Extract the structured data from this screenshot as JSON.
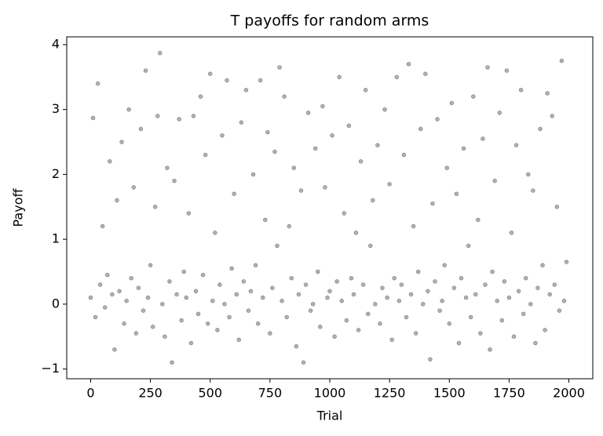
{
  "chart_data": {
    "type": "scatter",
    "title": "T payoffs for random arms",
    "xlabel": "Trial",
    "ylabel": "Payoff",
    "xlim": [
      -100,
      2100
    ],
    "ylim": [
      -1.15,
      4.12
    ],
    "xticks": [
      0,
      250,
      500,
      750,
      1000,
      1250,
      1500,
      1750,
      2000
    ],
    "yticks": [
      {
        "value": -1,
        "label": "−1"
      },
      0,
      1,
      2,
      3,
      4
    ],
    "grid": false,
    "x": [
      0,
      10,
      20,
      30,
      40,
      50,
      60,
      70,
      80,
      90,
      100,
      110,
      120,
      130,
      140,
      150,
      160,
      170,
      180,
      190,
      200,
      210,
      220,
      230,
      240,
      250,
      260,
      270,
      280,
      290,
      300,
      310,
      320,
      330,
      340,
      350,
      360,
      370,
      380,
      390,
      400,
      410,
      420,
      430,
      440,
      450,
      460,
      470,
      480,
      490,
      500,
      510,
      520,
      530,
      540,
      550,
      560,
      570,
      580,
      590,
      600,
      610,
      620,
      630,
      640,
      650,
      660,
      670,
      680,
      690,
      700,
      710,
      720,
      730,
      740,
      750,
      760,
      770,
      780,
      790,
      800,
      810,
      820,
      830,
      840,
      850,
      860,
      870,
      880,
      890,
      900,
      910,
      920,
      930,
      940,
      950,
      960,
      970,
      980,
      990,
      1000,
      1010,
      1020,
      1030,
      1040,
      1050,
      1060,
      1070,
      1080,
      1090,
      1100,
      1110,
      1120,
      1130,
      1140,
      1150,
      1160,
      1170,
      1180,
      1190,
      1200,
      1210,
      1220,
      1230,
      1240,
      1250,
      1260,
      1270,
      1280,
      1290,
      1300,
      1310,
      1320,
      1330,
      1340,
      1350,
      1360,
      1370,
      1380,
      1390,
      1400,
      1410,
      1420,
      1430,
      1440,
      1450,
      1460,
      1470,
      1480,
      1490,
      1500,
      1510,
      1520,
      1530,
      1540,
      1550,
      1560,
      1570,
      1580,
      1590,
      1600,
      1610,
      1620,
      1630,
      1640,
      1650,
      1660,
      1670,
      1680,
      1690,
      1700,
      1710,
      1720,
      1730,
      1740,
      1750,
      1760,
      1770,
      1780,
      1790,
      1800,
      1810,
      1820,
      1830,
      1840,
      1850,
      1860,
      1870,
      1880,
      1890,
      1900,
      1910,
      1920,
      1930,
      1940,
      1950,
      1960,
      1970,
      1980,
      1990
    ],
    "series": [
      {
        "color": "#000000",
        "values": [
          0.1,
          2.87,
          -0.2,
          3.4,
          0.3,
          1.2,
          -0.05,
          0.45,
          2.2,
          0.15,
          -0.7,
          1.6,
          0.2,
          2.5,
          -0.3,
          0.05,
          3.0,
          0.4,
          1.8,
          -0.45,
          0.25,
          2.7,
          -0.1,
          3.6,
          0.1,
          0.6,
          -0.35,
          1.5,
          2.9,
          3.87,
          0.0,
          -0.5,
          2.1,
          0.35,
          -0.9,
          1.9,
          0.15,
          2.85,
          -0.25,
          0.5,
          0.1,
          1.4,
          -0.6,
          2.9,
          0.2,
          -0.15,
          3.2,
          0.45,
          2.3,
          -0.3,
          3.55,
          0.05,
          1.1,
          -0.4,
          0.3,
          2.6,
          0.0,
          3.45,
          -0.2,
          0.55,
          1.7,
          0.15,
          -0.55,
          2.8,
          0.35,
          3.3,
          -0.1,
          0.2,
          2.0,
          0.6,
          -0.3,
          3.45,
          0.1,
          1.3,
          2.65,
          -0.45,
          0.25,
          2.35,
          0.9,
          3.65,
          0.05,
          3.2,
          -0.2,
          1.2,
          0.4,
          2.1,
          -0.65,
          0.15,
          1.75,
          -0.9,
          0.3,
          2.95,
          -0.1,
          0.0,
          2.4,
          0.5,
          -0.35,
          3.05,
          1.8,
          0.1,
          0.2,
          2.6,
          -0.5,
          0.35,
          3.5,
          0.05,
          1.4,
          -0.25,
          2.75,
          0.4,
          0.15,
          1.1,
          -0.4,
          2.2,
          0.3,
          3.3,
          -0.15,
          0.9,
          1.6,
          0.0,
          2.45,
          -0.3,
          0.25,
          3.0,
          0.1,
          1.85,
          -0.55,
          0.4,
          3.5,
          0.05,
          0.3,
          2.3,
          -0.2,
          3.7,
          0.15,
          1.2,
          -0.45,
          0.5,
          2.7,
          0.0,
          3.55,
          0.2,
          -0.85,
          1.55,
          0.35,
          2.85,
          -0.1,
          0.05,
          0.6,
          2.1,
          -0.3,
          3.1,
          0.25,
          1.7,
          -0.6,
          0.4,
          2.4,
          0.1,
          0.9,
          -0.2,
          3.2,
          0.15,
          1.3,
          -0.45,
          2.55,
          0.3,
          3.65,
          -0.7,
          0.5,
          1.9,
          0.05,
          2.95,
          -0.25,
          0.35,
          3.6,
          0.1,
          1.1,
          -0.5,
          2.45,
          0.2,
          3.3,
          -0.15,
          0.4,
          2.0,
          0.0,
          1.75,
          -0.6,
          0.25,
          2.7,
          0.6,
          -0.4,
          3.25,
          0.15,
          2.9,
          0.3,
          1.5,
          -0.1,
          3.75,
          0.05,
          0.65
        ]
      }
    ]
  }
}
